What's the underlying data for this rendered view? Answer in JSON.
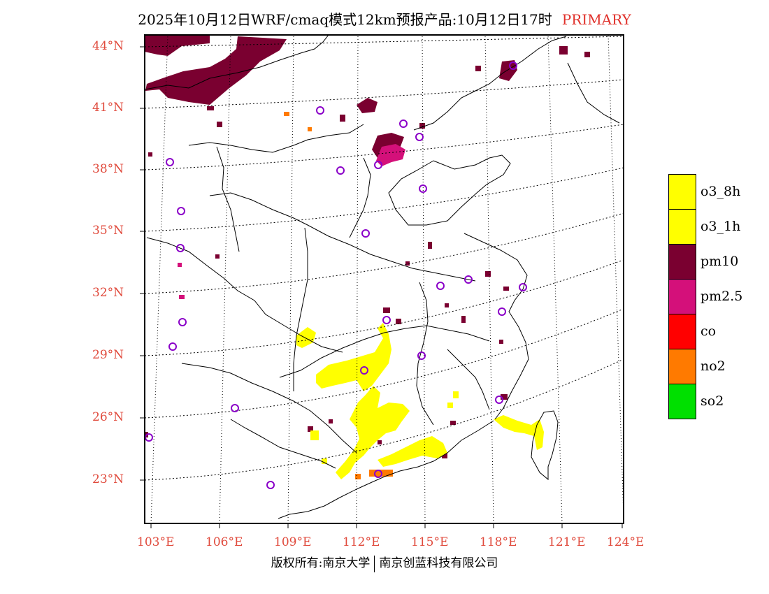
{
  "header": {
    "title": "2025年10月12日WRF/cmaq模式12km预报产品:10月12日17时",
    "status": "PRIMARY"
  },
  "axes": {
    "latitude_labels": [
      "44°N",
      "41°N",
      "38°N",
      "35°N",
      "32°N",
      "29°N",
      "26°N",
      "23°N"
    ],
    "longitude_labels": [
      "103°E",
      "106°E",
      "109°E",
      "112°E",
      "115°E",
      "118°E",
      "121°E",
      "124°E"
    ]
  },
  "legend": {
    "items": [
      {
        "label": "o3_8h",
        "color": "#ffff00"
      },
      {
        "label": "o3_1h",
        "color": "#ffff00"
      },
      {
        "label": "pm10",
        "color": "#7a0030"
      },
      {
        "label": "pm2.5",
        "color": "#d4107a"
      },
      {
        "label": "co",
        "color": "#ff0000"
      },
      {
        "label": "no2",
        "color": "#ff7a00"
      },
      {
        "label": "so2",
        "color": "#00e000"
      }
    ]
  },
  "colors": {
    "label": "#e04a3c",
    "station": "#8a00c8",
    "o3": "#ffff00",
    "pm10": "#7a0030",
    "pm25": "#d4107a",
    "no2": "#ff7a00"
  },
  "footer": {
    "left": "版权所有:南京大学",
    "right": "南京创蓝科技有限公司"
  }
}
